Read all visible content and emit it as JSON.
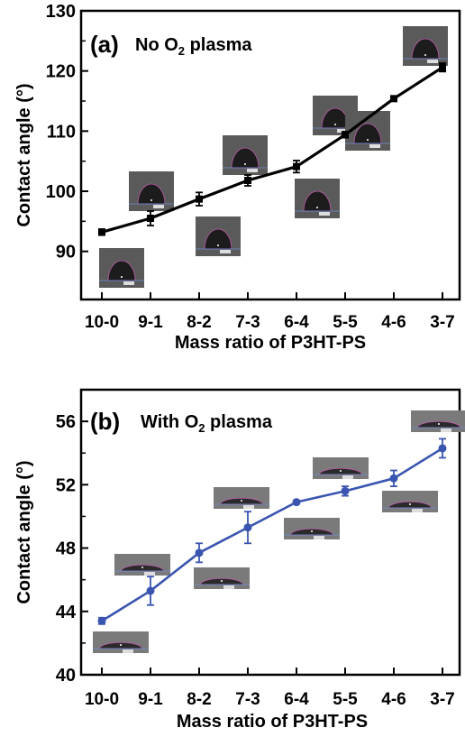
{
  "chart_data": [
    {
      "type": "line",
      "panel_label": "(a)",
      "title": "No O",
      "title_subscript": "2",
      "title_suffix": " plasma",
      "xlabel": "Mass ratio of P3HT-PS",
      "ylabel": "Contact angle (°)",
      "categories": [
        "10-0",
        "9-1",
        "8-2",
        "7-3",
        "6-4",
        "5-5",
        "4-6",
        "3-7"
      ],
      "ylim": [
        82,
        130
      ],
      "yticks": [
        90,
        100,
        110,
        120,
        130
      ],
      "series": [
        {
          "values": [
            93.2,
            95.5,
            98.7,
            101.8,
            104.1,
            109.4,
            115.4,
            120.6
          ],
          "errors": [
            0.5,
            1.2,
            1.1,
            0.9,
            1.0,
            0.5,
            0.4,
            0.7
          ],
          "color": "#000000"
        }
      ],
      "insets": [
        "droplet-1",
        "droplet-2",
        "droplet-3",
        "droplet-4",
        "droplet-5",
        "droplet-6",
        "droplet-7",
        "droplet-8"
      ]
    },
    {
      "type": "line",
      "panel_label": "(b)",
      "title": "With O",
      "title_subscript": "2",
      "title_suffix": " plasma",
      "xlabel": "Mass ratio of P3HT-PS",
      "ylabel": "Contact angle (°)",
      "categories": [
        "10-0",
        "9-1",
        "8-2",
        "7-3",
        "6-4",
        "5-5",
        "4-6",
        "3-7"
      ],
      "ylim": [
        40,
        58
      ],
      "yticks": [
        40,
        44,
        48,
        52,
        56
      ],
      "series": [
        {
          "values": [
            43.4,
            45.3,
            47.7,
            49.3,
            50.9,
            51.6,
            52.4,
            54.3
          ],
          "errors": [
            0.2,
            0.9,
            0.6,
            1.0,
            0.1,
            0.3,
            0.5,
            0.6
          ],
          "color": "#3a55b0"
        }
      ],
      "insets": [
        "droplet-1",
        "droplet-2",
        "droplet-3",
        "droplet-4",
        "droplet-5",
        "droplet-6",
        "droplet-7",
        "droplet-8"
      ]
    }
  ]
}
